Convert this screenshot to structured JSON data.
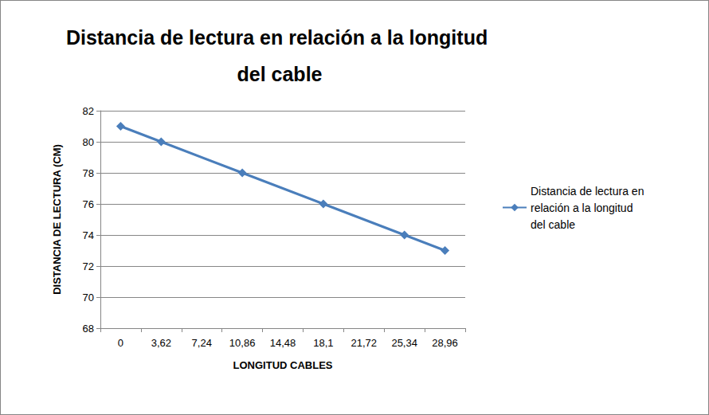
{
  "chart_data": {
    "type": "line",
    "title": "Distancia de lectura en relación a la longitud del cable",
    "x_label": "LONGITUD CABLES",
    "y_label": "DISTANCIA DE LECTURA (CM)",
    "categories": [
      "0",
      "3,62",
      "7,24",
      "10,86",
      "14,48",
      "18,1",
      "21,72",
      "25,34",
      "28,96"
    ],
    "series": [
      {
        "name": "Distancia de lectura en relación a la longitud del cable",
        "color": "#4a7ebb",
        "marker": "diamond",
        "values": [
          81,
          80,
          null,
          78,
          null,
          76,
          null,
          74,
          73
        ]
      }
    ],
    "ylim": [
      68,
      82
    ],
    "yticks": [
      68,
      70,
      72,
      74,
      76,
      78,
      80,
      82
    ],
    "grid": true,
    "legend": "right"
  }
}
